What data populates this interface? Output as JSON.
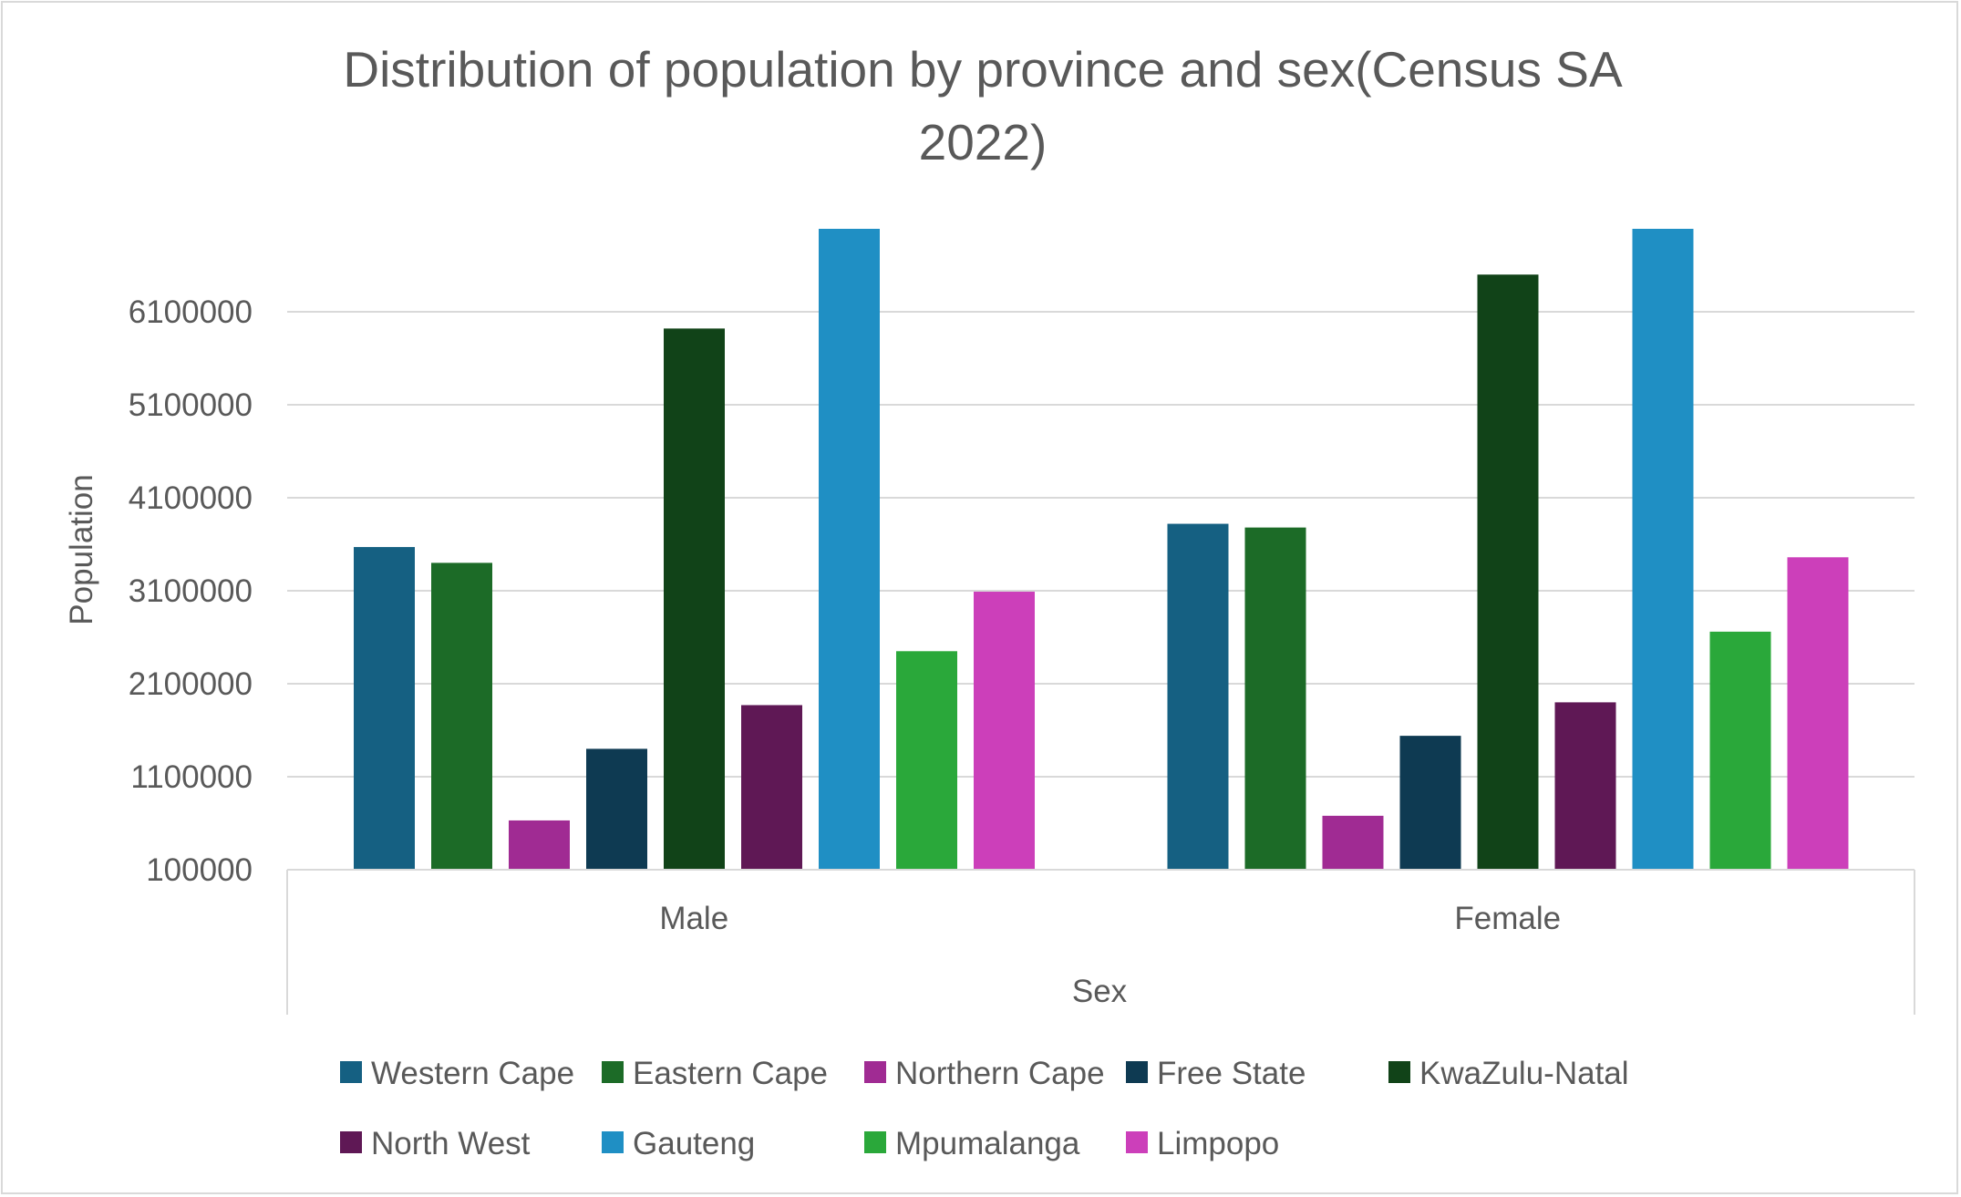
{
  "chart_data": {
    "type": "bar",
    "title_line1": "Distribution of population by province and sex(Census SA",
    "title_line2": "2022)",
    "xlabel": "Sex",
    "ylabel": "Population",
    "categories": [
      "Male",
      "Female"
    ],
    "yticks": [
      "100000",
      "1100000",
      "2100000",
      "3100000",
      "4100000",
      "5100000",
      "6100000"
    ],
    "ylim": [
      100000,
      7000000
    ],
    "grid": true,
    "legend_position": "bottom",
    "series": [
      {
        "name": "Western Cape",
        "color": "#156082",
        "values": [
          3570000,
          3820000
        ]
      },
      {
        "name": "Eastern Cape",
        "color": "#1c6b27",
        "values": [
          3400000,
          3780000
        ]
      },
      {
        "name": "Northern Cape",
        "color": "#a02b93",
        "values": [
          630000,
          680000
        ]
      },
      {
        "name": "Free State",
        "color": "#0e3a52",
        "values": [
          1400000,
          1540000
        ]
      },
      {
        "name": "KwaZulu-Natal",
        "color": "#114318",
        "values": [
          5920000,
          6500000
        ]
      },
      {
        "name": "North West",
        "color": "#5f1855",
        "values": [
          1870000,
          1900000
        ]
      },
      {
        "name": "Gauteng",
        "color": "#1f8fc4",
        "values": [
          7000000,
          7000000
        ]
      },
      {
        "name": "Mpumalanga",
        "color": "#2aa83a",
        "values": [
          2450000,
          2660000
        ]
      },
      {
        "name": "Limpopo",
        "color": "#cc3fba",
        "values": [
          3090000,
          3460000
        ]
      }
    ]
  }
}
